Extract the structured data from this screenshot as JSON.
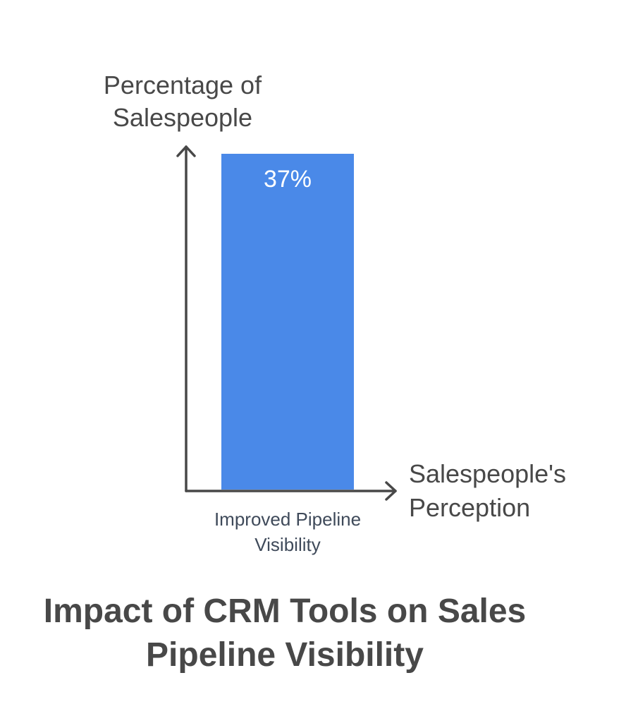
{
  "chart_data": {
    "type": "bar",
    "title": "Impact of CRM Tools on Sales Pipeline Visibility",
    "ylabel": "Percentage of Salespeople",
    "xlabel": "Salespeople's Perception",
    "categories": [
      "Improved Pipeline Visibility"
    ],
    "values": [
      37
    ],
    "data_labels": [
      "37%"
    ],
    "ylim": [
      0,
      37
    ],
    "grid": false,
    "bar_color": "#4a89e8",
    "axis_color": "#484848",
    "label_color": "#ffffff"
  }
}
